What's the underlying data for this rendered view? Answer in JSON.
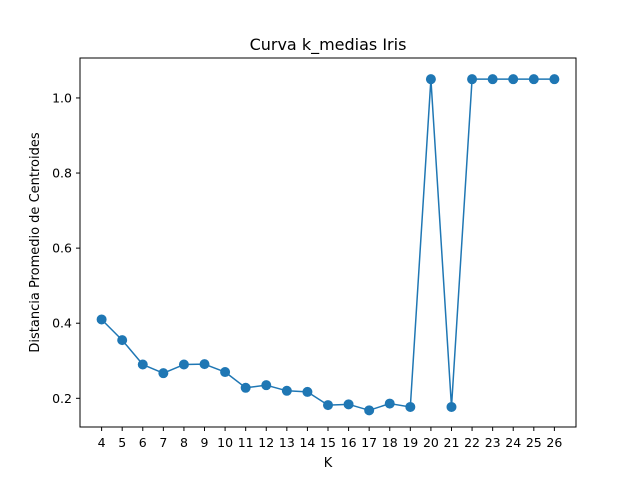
{
  "chart_data": {
    "type": "line",
    "title": "Curva k_medias Iris",
    "xlabel": "K",
    "ylabel": "Distancia Promedio de Centroides",
    "x": [
      4,
      5,
      6,
      7,
      8,
      9,
      10,
      11,
      12,
      13,
      14,
      15,
      16,
      17,
      18,
      19,
      20,
      21,
      22,
      23,
      24,
      25,
      26
    ],
    "x_tick_labels": [
      "4",
      "5",
      "6",
      "7",
      "8",
      "9",
      "10",
      "11",
      "12",
      "13",
      "14",
      "15",
      "16",
      "17",
      "18",
      "19",
      "20",
      "21",
      "22",
      "23",
      "24",
      "25",
      "26"
    ],
    "y_tick_values": [
      0.2,
      0.4,
      0.6,
      0.8,
      1.0
    ],
    "y_tick_labels": [
      "0.2",
      "0.4",
      "0.6",
      "0.8",
      "1.0"
    ],
    "series": [
      {
        "values": [
          0.41,
          0.355,
          0.29,
          0.267,
          0.29,
          0.291,
          0.27,
          0.228,
          0.235,
          0.22,
          0.217,
          0.182,
          0.184,
          0.168,
          0.186,
          0.177,
          1.05,
          0.177,
          1.05,
          1.05,
          1.05,
          1.05,
          1.05
        ],
        "color": "#1f77b4",
        "marker": "circle"
      }
    ],
    "xlim": [
      2.95,
      27.05
    ],
    "ylim": [
      0.1236,
      1.1064
    ],
    "grid": false,
    "legend": "none"
  }
}
